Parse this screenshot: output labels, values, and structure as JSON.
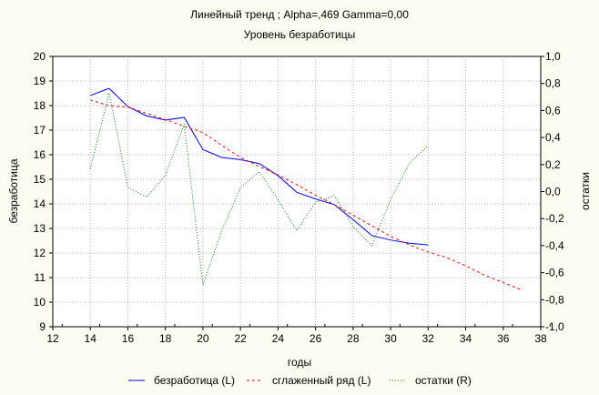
{
  "chart_data": {
    "type": "line",
    "title": "Линейный тренд ; Alpha=,469 Gamma=0,00",
    "subtitle": "Уровень безработицы",
    "xlabel": "годы",
    "ylabel": "безработица",
    "ylabel_right": "остатки",
    "xlim": [
      12,
      38
    ],
    "ylim": [
      9,
      20
    ],
    "ylim_right": [
      -1,
      1
    ],
    "x_ticks": [
      "12",
      "14",
      "16",
      "18",
      "20",
      "22",
      "24",
      "26",
      "28",
      "30",
      "32",
      "34",
      "36",
      "38"
    ],
    "y_ticks": [
      "9",
      "10",
      "11",
      "12",
      "13",
      "14",
      "15",
      "16",
      "17",
      "18",
      "19",
      "20"
    ],
    "y_ticks_right": [
      "-1,0",
      "-0,8",
      "-0,6",
      "-0,4",
      "-0,2",
      "0,0",
      "0,2",
      "0,4",
      "0,6",
      "0,8",
      "1,0"
    ],
    "grid": true,
    "legend_position": "bottom",
    "series": [
      {
        "name": "безработица (L)",
        "axis": "left",
        "color": "#0000ff",
        "style": "solid",
        "x": [
          14,
          15,
          16,
          17,
          18,
          19,
          20,
          21,
          22,
          23,
          24,
          25,
          26,
          27,
          28,
          29,
          30,
          31,
          32
        ],
        "y": [
          18.41,
          18.7,
          17.96,
          17.58,
          17.41,
          17.52,
          16.21,
          15.89,
          15.8,
          15.64,
          15.15,
          14.47,
          14.2,
          13.97,
          13.36,
          12.71,
          12.53,
          12.4,
          12.33
        ]
      },
      {
        "name": "сглаженный ряд (L)",
        "axis": "left",
        "color": "#ff0000",
        "style": "dashed",
        "x": [
          14,
          15,
          16,
          17,
          18,
          19,
          20,
          21,
          22,
          23,
          24,
          25,
          26,
          27,
          28,
          29,
          30,
          31,
          32,
          33,
          34,
          35,
          36,
          37
        ],
        "y": [
          18.23,
          17.99,
          17.94,
          17.68,
          17.43,
          17.16,
          16.9,
          16.38,
          15.89,
          15.52,
          15.18,
          14.78,
          14.35,
          13.97,
          13.54,
          13.11,
          12.68,
          12.33,
          12.04,
          11.81,
          11.48,
          11.1,
          10.8,
          10.49
        ]
      },
      {
        "name": "остатки (R)",
        "axis": "right",
        "color": "#008000",
        "style": "dotted",
        "x": [
          14,
          15,
          16,
          17,
          18,
          19,
          20,
          21,
          22,
          23,
          24,
          25,
          26,
          27,
          28,
          29,
          30,
          31,
          32
        ],
        "y": [
          0.17,
          0.73,
          0.03,
          -0.04,
          0.12,
          0.5,
          -0.69,
          -0.29,
          0.03,
          0.15,
          -0.06,
          -0.29,
          -0.08,
          -0.03,
          -0.26,
          -0.4,
          -0.06,
          0.21,
          0.34
        ]
      }
    ]
  }
}
